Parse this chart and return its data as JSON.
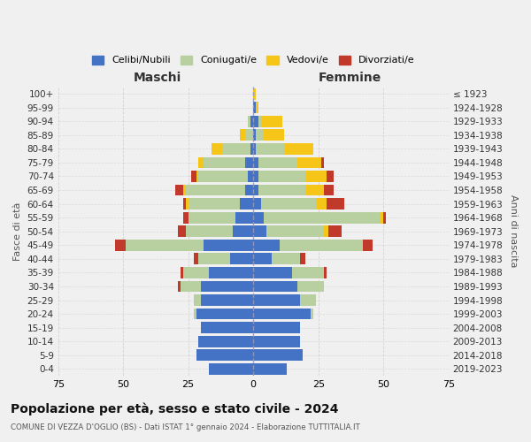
{
  "age_groups": [
    "0-4",
    "5-9",
    "10-14",
    "15-19",
    "20-24",
    "25-29",
    "30-34",
    "35-39",
    "40-44",
    "45-49",
    "50-54",
    "55-59",
    "60-64",
    "65-69",
    "70-74",
    "75-79",
    "80-84",
    "85-89",
    "90-94",
    "95-99",
    "100+"
  ],
  "birth_years": [
    "2019-2023",
    "2014-2018",
    "2009-2013",
    "2004-2008",
    "1999-2003",
    "1994-1998",
    "1989-1993",
    "1984-1988",
    "1979-1983",
    "1974-1978",
    "1969-1973",
    "1964-1968",
    "1959-1963",
    "1954-1958",
    "1949-1953",
    "1944-1948",
    "1939-1943",
    "1934-1938",
    "1929-1933",
    "1924-1928",
    "≤ 1923"
  ],
  "male_celibi": [
    17,
    22,
    21,
    20,
    22,
    20,
    20,
    17,
    9,
    19,
    8,
    7,
    5,
    3,
    2,
    3,
    1,
    0,
    1,
    0,
    0
  ],
  "male_coniugati": [
    0,
    0,
    0,
    0,
    1,
    3,
    8,
    10,
    12,
    30,
    18,
    18,
    20,
    23,
    19,
    16,
    11,
    3,
    1,
    0,
    0
  ],
  "male_vedovi": [
    0,
    0,
    0,
    0,
    0,
    0,
    0,
    0,
    0,
    0,
    0,
    0,
    1,
    1,
    1,
    2,
    4,
    2,
    0,
    0,
    0
  ],
  "male_divorziati": [
    0,
    0,
    0,
    0,
    0,
    0,
    1,
    1,
    2,
    4,
    3,
    2,
    1,
    3,
    2,
    0,
    0,
    0,
    0,
    0,
    0
  ],
  "female_celibi": [
    13,
    19,
    18,
    18,
    22,
    18,
    17,
    15,
    7,
    10,
    5,
    4,
    3,
    2,
    2,
    2,
    1,
    1,
    2,
    1,
    0
  ],
  "female_coniugati": [
    0,
    0,
    0,
    0,
    1,
    6,
    10,
    12,
    11,
    32,
    22,
    45,
    21,
    18,
    18,
    15,
    11,
    3,
    1,
    0,
    0
  ],
  "female_vedovi": [
    0,
    0,
    0,
    0,
    0,
    0,
    0,
    0,
    0,
    0,
    2,
    1,
    4,
    7,
    8,
    9,
    11,
    8,
    8,
    1,
    1
  ],
  "female_divorziati": [
    0,
    0,
    0,
    0,
    0,
    0,
    0,
    1,
    2,
    4,
    5,
    1,
    7,
    4,
    3,
    1,
    0,
    0,
    0,
    0,
    0
  ],
  "colors": {
    "celibi": "#4472c4",
    "coniugati": "#b8cfa0",
    "vedovi": "#f5c518",
    "divorziati": "#c0392b"
  },
  "xlim": 75,
  "title": "Popolazione per età, sesso e stato civile - 2024",
  "subtitle": "COMUNE DI VEZZA D'OGLIO (BS) - Dati ISTAT 1° gennaio 2024 - Elaborazione TUTTITALIA.IT",
  "xlabel_left": "Maschi",
  "xlabel_right": "Femmine",
  "ylabel_left": "Fasce di età",
  "ylabel_right": "Anni di nascita",
  "legend_labels": [
    "Celibi/Nubili",
    "Coniugati/e",
    "Vedovi/e",
    "Divorziati/e"
  ],
  "bg_color": "#f0f0f0",
  "grid_color": "#cccccc"
}
